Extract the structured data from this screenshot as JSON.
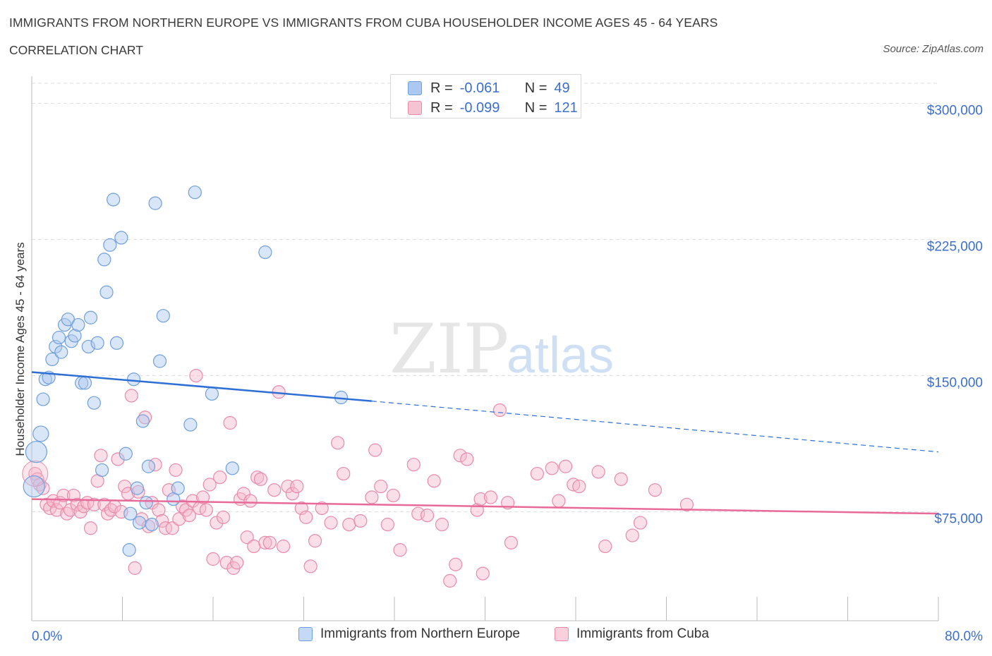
{
  "title": "IMMIGRANTS FROM NORTHERN EUROPE VS IMMIGRANTS FROM CUBA HOUSEHOLDER INCOME AGES 45 - 64 YEARS",
  "subtitle": "CORRELATION CHART",
  "source": "Source: ZipAtlas.com",
  "watermark": {
    "zip": "ZIP",
    "atlas": "atlas"
  },
  "colors": {
    "blue_fill": "#aac8f0",
    "blue_stroke": "#6f9fdc",
    "blue_line": "#2e6fd4",
    "pink_fill": "#f5b8cb",
    "pink_stroke": "#e98aa8",
    "pink_line": "#e86a98",
    "axis_label": "#3b6fd0",
    "grid": "#dddddd"
  },
  "stats_box": {
    "rows": [
      {
        "r_label": "R =",
        "r_value": "-0.061",
        "n_label": "N =",
        "n_value": "49"
      },
      {
        "r_label": "R =",
        "r_value": "-0.099",
        "n_label": "N =",
        "n_value": "121"
      }
    ]
  },
  "chart_data": {
    "type": "scatter",
    "title": "IMMIGRANTS FROM NORTHERN EUROPE VS IMMIGRANTS FROM CUBA HOUSEHOLDER INCOME AGES 45 - 64 YEARS",
    "ylabel": "Householder Income Ages 45 - 64 years",
    "x_tick_labels": [
      "0.0%",
      "80.0%"
    ],
    "y_tick_labels": [
      "$75,000",
      "$150,000",
      "$225,000",
      "$300,000"
    ],
    "y_ticks": [
      75000,
      150000,
      225000,
      300000
    ],
    "xlim": [
      0,
      80
    ],
    "ylim": [
      15000,
      315000
    ],
    "grid": true,
    "legend_placement": "bottom",
    "series": [
      {
        "name": "Immigrants from Northern Europe",
        "color": "blue",
        "trend": {
          "x": [
            0,
            30
          ],
          "y": [
            152000,
            136000
          ],
          "dashed_to": [
            80,
            108000
          ]
        },
        "points": [
          [
            0.2,
            89000
          ],
          [
            0.4,
            108000
          ],
          [
            0.8,
            118000
          ],
          [
            1.0,
            137000
          ],
          [
            1.2,
            148000
          ],
          [
            1.5,
            149000
          ],
          [
            1.8,
            159000
          ],
          [
            2.1,
            166000
          ],
          [
            2.4,
            171000
          ],
          [
            2.6,
            163000
          ],
          [
            2.9,
            178000
          ],
          [
            3.2,
            181000
          ],
          [
            3.5,
            169000
          ],
          [
            3.8,
            172000
          ],
          [
            4.1,
            178000
          ],
          [
            4.4,
            146000
          ],
          [
            4.7,
            146000
          ],
          [
            5.0,
            166000
          ],
          [
            5.2,
            182000
          ],
          [
            5.5,
            135000
          ],
          [
            5.8,
            168000
          ],
          [
            6.2,
            98000
          ],
          [
            6.4,
            214000
          ],
          [
            6.6,
            196000
          ],
          [
            6.9,
            222000
          ],
          [
            7.2,
            247000
          ],
          [
            7.5,
            168000
          ],
          [
            7.9,
            226000
          ],
          [
            8.3,
            107000
          ],
          [
            8.7,
            74000
          ],
          [
            9.0,
            148000
          ],
          [
            9.3,
            88000
          ],
          [
            9.5,
            69000
          ],
          [
            9.8,
            125000
          ],
          [
            10.1,
            80000
          ],
          [
            10.3,
            100000
          ],
          [
            10.6,
            68000
          ],
          [
            10.9,
            245000
          ],
          [
            11.3,
            158000
          ],
          [
            11.6,
            183000
          ],
          [
            12.5,
            82000
          ],
          [
            12.9,
            88000
          ],
          [
            14.0,
            123000
          ],
          [
            14.4,
            251000
          ],
          [
            15.9,
            140000
          ],
          [
            17.7,
            99000
          ],
          [
            20.6,
            218000
          ],
          [
            27.3,
            138000
          ],
          [
            8.6,
            54000
          ]
        ]
      },
      {
        "name": "Immigrants from Cuba",
        "color": "pink",
        "trend": {
          "x": [
            0,
            80
          ],
          "y": [
            82000,
            74000
          ]
        },
        "points": [
          [
            0.3,
            96000
          ],
          [
            0.5,
            93000
          ],
          [
            0.7,
            90000
          ],
          [
            1.0,
            88000
          ],
          [
            1.3,
            79000
          ],
          [
            1.6,
            77000
          ],
          [
            1.9,
            81000
          ],
          [
            2.2,
            76000
          ],
          [
            2.5,
            80000
          ],
          [
            2.8,
            84000
          ],
          [
            3.1,
            74000
          ],
          [
            3.4,
            76000
          ],
          [
            3.7,
            84000
          ],
          [
            4.0,
            79000
          ],
          [
            4.3,
            75000
          ],
          [
            4.6,
            78000
          ],
          [
            4.9,
            80000
          ],
          [
            5.2,
            66000
          ],
          [
            5.5,
            79000
          ],
          [
            5.8,
            92000
          ],
          [
            6.1,
            106000
          ],
          [
            6.4,
            79000
          ],
          [
            6.7,
            74000
          ],
          [
            7.0,
            76000
          ],
          [
            7.3,
            78000
          ],
          [
            7.6,
            104000
          ],
          [
            7.9,
            75000
          ],
          [
            8.2,
            89000
          ],
          [
            8.5,
            85000
          ],
          [
            8.8,
            139000
          ],
          [
            9.1,
            44000
          ],
          [
            9.4,
            86000
          ],
          [
            9.7,
            71000
          ],
          [
            10.0,
            127000
          ],
          [
            10.3,
            67000
          ],
          [
            10.6,
            80000
          ],
          [
            10.9,
            101000
          ],
          [
            11.2,
            76000
          ],
          [
            11.5,
            70000
          ],
          [
            11.8,
            66000
          ],
          [
            12.1,
            87000
          ],
          [
            12.4,
            66000
          ],
          [
            12.7,
            98000
          ],
          [
            13.0,
            71000
          ],
          [
            13.3,
            78000
          ],
          [
            13.6,
            76000
          ],
          [
            13.9,
            73000
          ],
          [
            14.2,
            81000
          ],
          [
            14.5,
            150000
          ],
          [
            14.8,
            77000
          ],
          [
            15.1,
            83000
          ],
          [
            15.4,
            76000
          ],
          [
            15.7,
            90000
          ],
          [
            16.0,
            49000
          ],
          [
            16.3,
            69000
          ],
          [
            16.6,
            94000
          ],
          [
            16.9,
            72000
          ],
          [
            17.2,
            47000
          ],
          [
            17.5,
            124000
          ],
          [
            17.8,
            44000
          ],
          [
            18.1,
            47000
          ],
          [
            18.4,
            82000
          ],
          [
            18.7,
            85000
          ],
          [
            19.0,
            61000
          ],
          [
            19.3,
            81000
          ],
          [
            19.6,
            56000
          ],
          [
            19.9,
            94000
          ],
          [
            20.2,
            93000
          ],
          [
            20.6,
            58000
          ],
          [
            21.0,
            58000
          ],
          [
            21.4,
            87000
          ],
          [
            21.8,
            141000
          ],
          [
            22.2,
            56000
          ],
          [
            22.6,
            89000
          ],
          [
            23.0,
            85000
          ],
          [
            23.4,
            89000
          ],
          [
            23.8,
            77000
          ],
          [
            24.2,
            72000
          ],
          [
            24.6,
            45000
          ],
          [
            25.0,
            59000
          ],
          [
            25.6,
            77000
          ],
          [
            26.4,
            69000
          ],
          [
            27.0,
            113000
          ],
          [
            27.5,
            96000
          ],
          [
            28.0,
            68000
          ],
          [
            29.0,
            70000
          ],
          [
            30.0,
            83000
          ],
          [
            30.3,
            109000
          ],
          [
            30.8,
            89000
          ],
          [
            31.4,
            68000
          ],
          [
            31.9,
            84000
          ],
          [
            32.5,
            54000
          ],
          [
            33.7,
            101000
          ],
          [
            34.1,
            74000
          ],
          [
            34.9,
            73000
          ],
          [
            35.5,
            92000
          ],
          [
            36.2,
            68000
          ],
          [
            36.9,
            37000
          ],
          [
            37.4,
            46000
          ],
          [
            37.8,
            106000
          ],
          [
            38.4,
            104000
          ],
          [
            39.3,
            76000
          ],
          [
            39.6,
            82000
          ],
          [
            39.8,
            41000
          ],
          [
            40.5,
            83000
          ],
          [
            41.3,
            131000
          ],
          [
            42.0,
            80000
          ],
          [
            42.3,
            58000
          ],
          [
            44.6,
            96000
          ],
          [
            45.9,
            99000
          ],
          [
            46.5,
            81000
          ],
          [
            47.1,
            100000
          ],
          [
            47.8,
            90000
          ],
          [
            48.3,
            89000
          ],
          [
            50.0,
            97000
          ],
          [
            50.6,
            56000
          ],
          [
            52.0,
            93000
          ],
          [
            53.0,
            62000
          ],
          [
            53.7,
            69000
          ],
          [
            55.0,
            87000
          ],
          [
            57.8,
            79000
          ]
        ]
      }
    ]
  },
  "legend": {
    "items": [
      {
        "label": "Immigrants from Northern Europe"
      },
      {
        "label": "Immigrants from Cuba"
      }
    ]
  }
}
